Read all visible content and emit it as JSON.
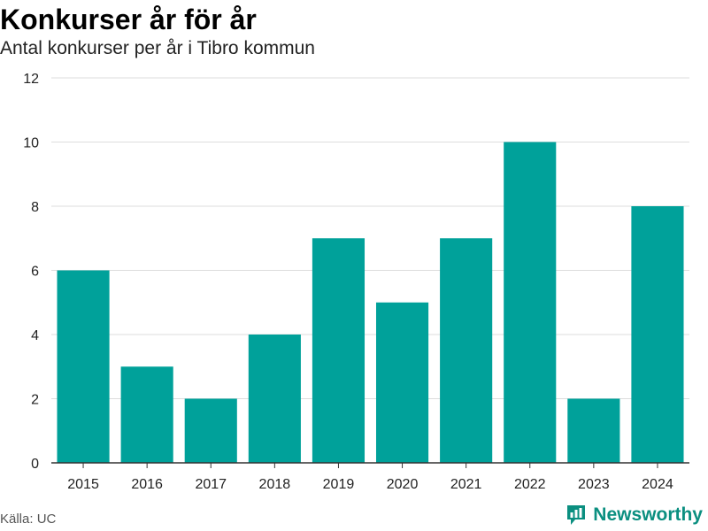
{
  "chart_data": {
    "type": "bar",
    "title": "Konkurser år för år",
    "subtitle": "Antal konkurser per år i Tibro kommun",
    "categories": [
      "2015",
      "2016",
      "2017",
      "2018",
      "2019",
      "2020",
      "2021",
      "2022",
      "2023",
      "2024"
    ],
    "values": [
      6,
      3,
      2,
      4,
      7,
      5,
      7,
      10,
      2,
      8
    ],
    "ylim": [
      0,
      12
    ],
    "yticks": [
      0,
      2,
      4,
      6,
      8,
      10,
      12
    ],
    "grid": true,
    "bar_color": "#00a19a",
    "grid_color": "#dddddd",
    "axis_color": "#333333"
  },
  "footer": {
    "source": "Källa: UC",
    "brand": "Newsworthy",
    "brand_color": "#0b8f80",
    "brand_icon": "newsworthy-logo-icon"
  }
}
